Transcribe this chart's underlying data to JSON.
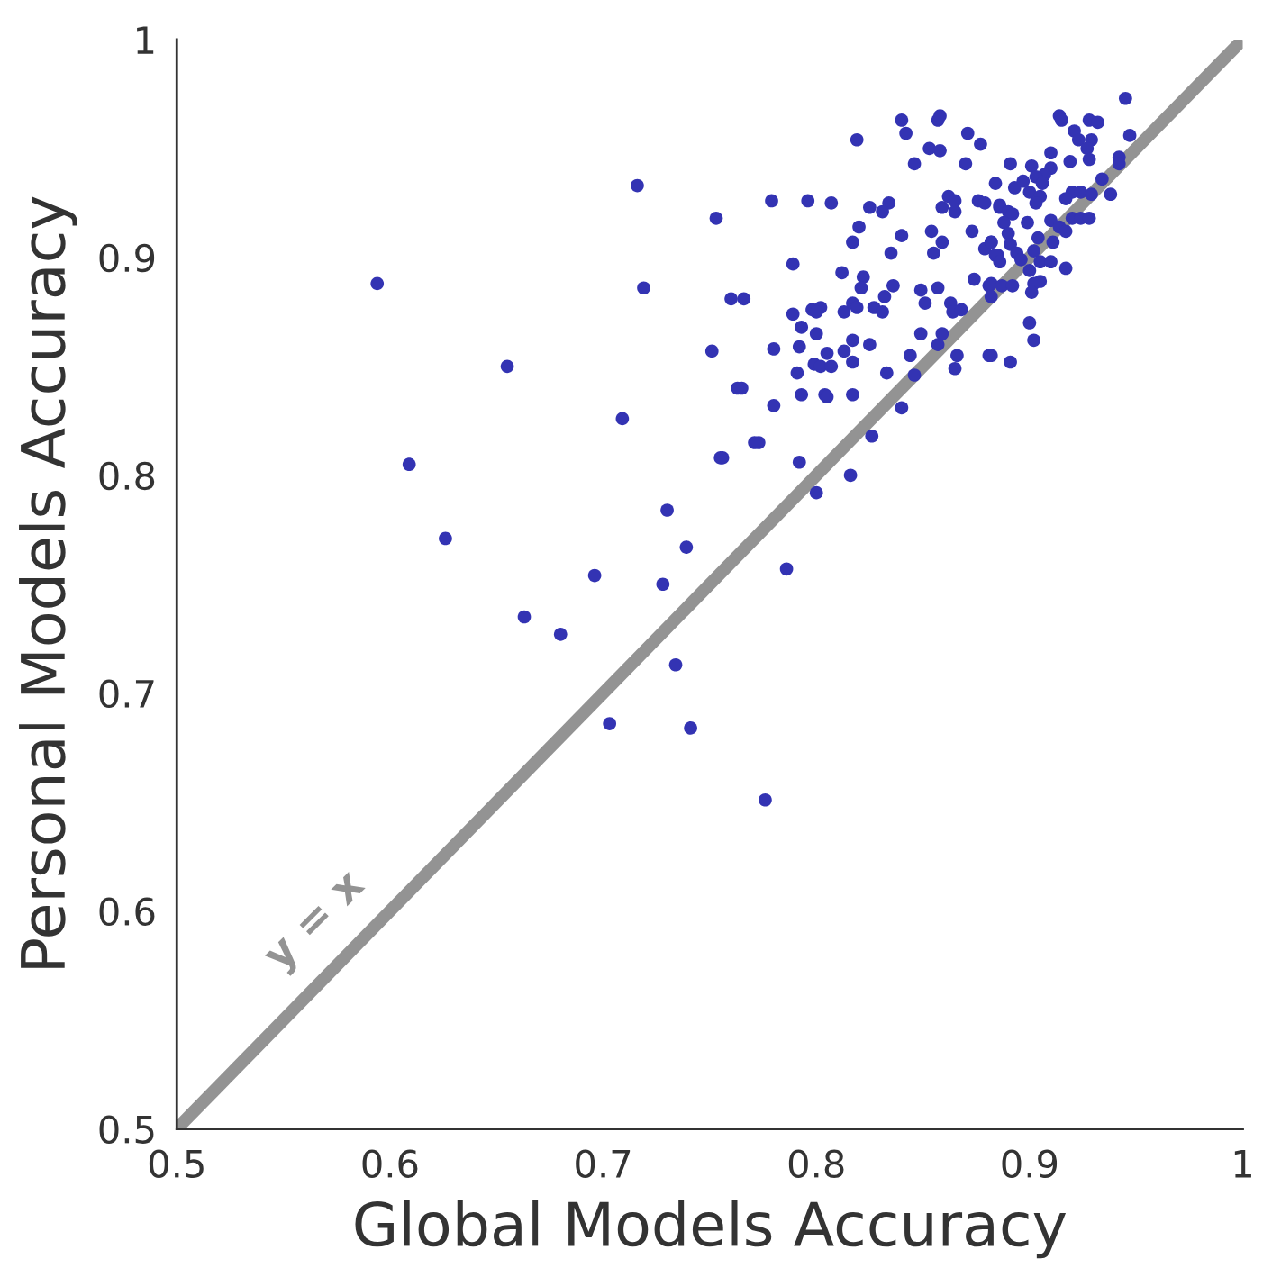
{
  "chart_data": {
    "type": "scatter",
    "xlabel": "Global Models Accuracy",
    "ylabel": "Personal Models Accuracy",
    "xlim": [
      0.5,
      1
    ],
    "ylim": [
      0.5,
      1
    ],
    "xticks": [
      0.5,
      0.6,
      0.7,
      0.8,
      0.9,
      1
    ],
    "yticks": [
      0.5,
      0.6,
      0.7,
      0.8,
      0.9,
      1
    ],
    "grid": false,
    "legend": false,
    "annotations": [
      "y = x"
    ],
    "series": [
      {
        "marker": "circle",
        "color": "#3333b3",
        "x": [
          0.594,
          0.609,
          0.626,
          0.655,
          0.663,
          0.68,
          0.696,
          0.703,
          0.709,
          0.716,
          0.719,
          0.728,
          0.73,
          0.734,
          0.739,
          0.741,
          0.756,
          0.765,
          0.773,
          0.776,
          0.786,
          0.84,
          0.857,
          0.858,
          0.819,
          0.842,
          0.871,
          0.853,
          0.858,
          0.877,
          0.846,
          0.87,
          0.884,
          0.753,
          0.779,
          0.796,
          0.807,
          0.825,
          0.834,
          0.831,
          0.862,
          0.865,
          0.859,
          0.865,
          0.876,
          0.879,
          0.886,
          0.82,
          0.817,
          0.854,
          0.873,
          0.84,
          0.859,
          0.835,
          0.855,
          0.879,
          0.882,
          0.885,
          0.789,
          0.812,
          0.822,
          0.821,
          0.836,
          0.849,
          0.857,
          0.874,
          0.881,
          0.76,
          0.766,
          0.789,
          0.798,
          0.802,
          0.8,
          0.813,
          0.817,
          0.819,
          0.827,
          0.831,
          0.832,
          0.851,
          0.863,
          0.864,
          0.868,
          0.793,
          0.8,
          0.817,
          0.825,
          0.849,
          0.859,
          0.751,
          0.78,
          0.792,
          0.805,
          0.813,
          0.857,
          0.799,
          0.802,
          0.807,
          0.817,
          0.844,
          0.866,
          0.881,
          0.791,
          0.833,
          0.846,
          0.865,
          0.763,
          0.793,
          0.804,
          0.805,
          0.817,
          0.78,
          0.84,
          0.771,
          0.755,
          0.792,
          0.826,
          0.816,
          0.8,
          0.945,
          0.914,
          0.915,
          0.928,
          0.932,
          0.921,
          0.923,
          0.929,
          0.947,
          0.927,
          0.928,
          0.91,
          0.919,
          0.942,
          0.942,
          0.891,
          0.901,
          0.91,
          0.907,
          0.893,
          0.897,
          0.903,
          0.906,
          0.9,
          0.905,
          0.934,
          0.938,
          0.92,
          0.924,
          0.917,
          0.929,
          0.886,
          0.89,
          0.903,
          0.892,
          0.92,
          0.924,
          0.928,
          0.91,
          0.914,
          0.917,
          0.899,
          0.888,
          0.89,
          0.904,
          0.911,
          0.882,
          0.891,
          0.894,
          0.902,
          0.884,
          0.896,
          0.905,
          0.91,
          0.886,
          0.9,
          0.917,
          0.905,
          0.882,
          0.887,
          0.892,
          0.902,
          0.901,
          0.882,
          0.9,
          0.902,
          0.882,
          0.891
        ],
        "values": [
          0.888,
          0.805,
          0.771,
          0.85,
          0.735,
          0.727,
          0.754,
          0.686,
          0.826,
          0.933,
          0.886,
          0.75,
          0.784,
          0.713,
          0.767,
          0.684,
          0.808,
          0.84,
          0.815,
          0.651,
          0.757,
          0.963,
          0.963,
          0.965,
          0.954,
          0.957,
          0.957,
          0.95,
          0.949,
          0.952,
          0.943,
          0.943,
          0.934,
          0.918,
          0.926,
          0.926,
          0.925,
          0.923,
          0.925,
          0.921,
          0.928,
          0.926,
          0.923,
          0.921,
          0.926,
          0.925,
          0.923,
          0.914,
          0.907,
          0.912,
          0.912,
          0.91,
          0.907,
          0.902,
          0.902,
          0.904,
          0.907,
          0.901,
          0.897,
          0.893,
          0.891,
          0.886,
          0.887,
          0.885,
          0.886,
          0.89,
          0.887,
          0.881,
          0.881,
          0.874,
          0.876,
          0.877,
          0.875,
          0.875,
          0.879,
          0.877,
          0.877,
          0.875,
          0.882,
          0.879,
          0.879,
          0.875,
          0.876,
          0.868,
          0.865,
          0.862,
          0.86,
          0.865,
          0.865,
          0.857,
          0.858,
          0.859,
          0.856,
          0.857,
          0.86,
          0.851,
          0.85,
          0.85,
          0.852,
          0.855,
          0.855,
          0.855,
          0.847,
          0.847,
          0.846,
          0.849,
          0.84,
          0.837,
          0.837,
          0.836,
          0.837,
          0.832,
          0.831,
          0.815,
          0.808,
          0.806,
          0.818,
          0.8,
          0.792,
          0.973,
          0.965,
          0.963,
          0.963,
          0.962,
          0.958,
          0.954,
          0.954,
          0.956,
          0.95,
          0.945,
          0.948,
          0.944,
          0.946,
          0.943,
          0.943,
          0.942,
          0.941,
          0.938,
          0.932,
          0.935,
          0.937,
          0.934,
          0.93,
          0.928,
          0.936,
          0.929,
          0.93,
          0.93,
          0.927,
          0.929,
          0.924,
          0.921,
          0.925,
          0.92,
          0.918,
          0.918,
          0.918,
          0.917,
          0.914,
          0.912,
          0.916,
          0.916,
          0.911,
          0.909,
          0.907,
          0.907,
          0.906,
          0.902,
          0.903,
          0.901,
          0.899,
          0.898,
          0.898,
          0.898,
          0.894,
          0.895,
          0.889,
          0.888,
          0.887,
          0.887,
          0.888,
          0.884,
          0.882,
          0.87,
          0.862,
          0.855,
          0.852
        ]
      },
      {
        "type": "line",
        "color": "#939393",
        "x": [
          0.5,
          1
        ],
        "values": [
          0.5,
          1
        ]
      }
    ]
  }
}
